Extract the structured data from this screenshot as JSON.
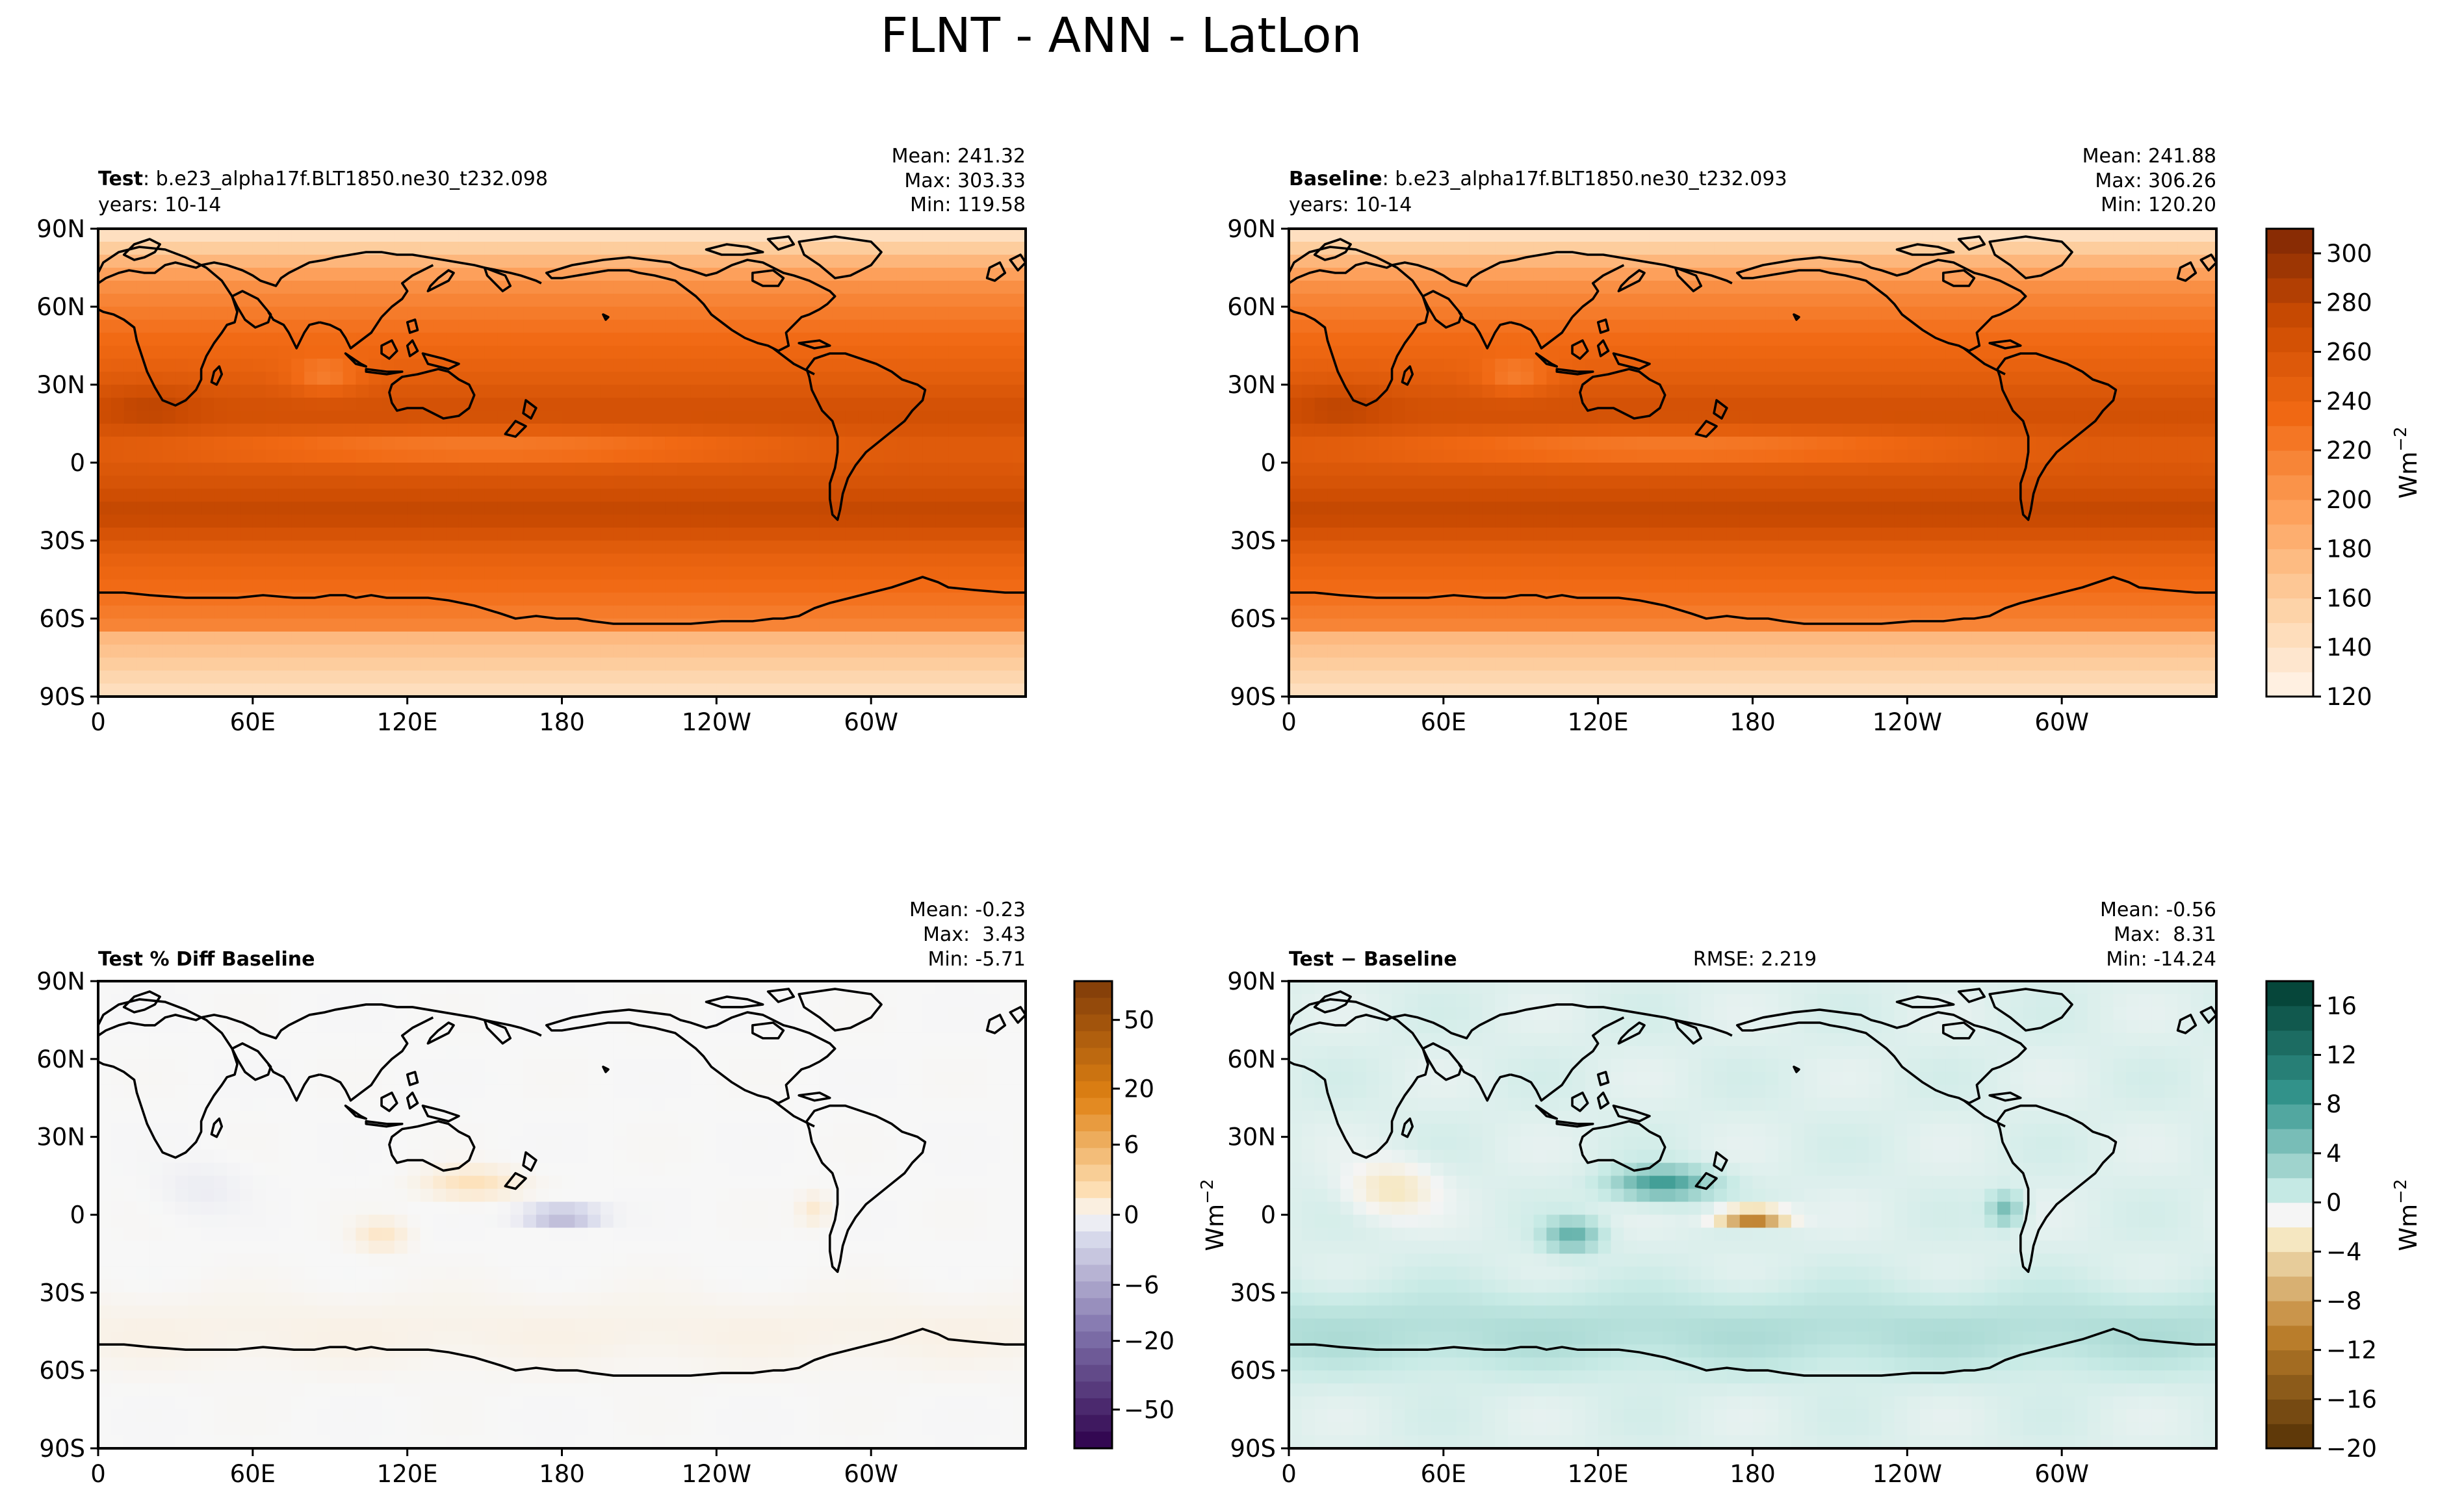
{
  "figure": {
    "title": "FLNT - ANN - LatLon"
  },
  "chart_data": [
    {
      "type": "heatmap",
      "id": "test",
      "label_bold": "Test",
      "label_rest": ": b.e23_alpha17f.BLT1850.ne30_t232.098",
      "years": "years: 10-14",
      "stats": [
        "Mean: 241.32",
        "Max: 303.33",
        "Min: 119.58"
      ],
      "field": "flnt",
      "palette": "oranges",
      "xticks": [
        "0",
        "60E",
        "120E",
        "180",
        "120W",
        "60W"
      ],
      "yticks": [
        "90N",
        "60N",
        "30N",
        "0",
        "30S",
        "60S",
        "90S"
      ],
      "xlim": [
        0,
        360
      ],
      "ylim": [
        -90,
        90
      ]
    },
    {
      "type": "heatmap",
      "id": "baseline",
      "label_bold": "Baseline",
      "label_rest": ": b.e23_alpha17f.BLT1850.ne30_t232.093",
      "years": "years: 10-14",
      "stats": [
        "Mean: 241.88",
        "Max: 306.26",
        "Min: 120.20"
      ],
      "field": "flnt",
      "palette": "oranges",
      "xticks": [
        "0",
        "60E",
        "120E",
        "180",
        "120W",
        "60W"
      ],
      "yticks": [
        "90N",
        "60N",
        "30N",
        "0",
        "30S",
        "60S",
        "90S"
      ],
      "xlim": [
        0,
        360
      ],
      "ylim": [
        -90,
        90
      ],
      "colorbar": {
        "range": [
          120,
          310
        ],
        "ticks": [
          "120",
          "140",
          "160",
          "180",
          "200",
          "220",
          "240",
          "260",
          "280",
          "300"
        ],
        "unit": "Wm",
        "unit_exp": "−2"
      }
    },
    {
      "type": "heatmap",
      "id": "pctdiff",
      "label_bold": "Test % Diff Baseline",
      "stats": [
        "Mean: -0.23",
        "Max:  3.43",
        "Min: -5.71"
      ],
      "field": "pct",
      "palette": "purple-orange",
      "xticks": [
        "0",
        "60E",
        "120E",
        "180",
        "120W",
        "60W"
      ],
      "yticks": [
        "90N",
        "60N",
        "30N",
        "0",
        "30S",
        "60S",
        "90S"
      ],
      "xlim": [
        0,
        360
      ],
      "ylim": [
        -90,
        90
      ],
      "colorbar": {
        "ticks": [
          "50",
          "20",
          "6",
          "0",
          "−6",
          "−20",
          "−50"
        ],
        "unit": "Wm",
        "unit_exp": "−2"
      }
    },
    {
      "type": "heatmap",
      "id": "diff",
      "label_bold": "Test",
      "label_rest": " − Baseline",
      "rmse": "RMSE: 2.219",
      "stats": [
        "Mean: -0.56",
        "Max:  8.31",
        "Min: -14.24"
      ],
      "field": "diff",
      "palette": "brown-teal",
      "xticks": [
        "0",
        "60E",
        "120E",
        "180",
        "120W",
        "60W"
      ],
      "yticks": [
        "90N",
        "60N",
        "30N",
        "0",
        "30S",
        "60S",
        "90S"
      ],
      "xlim": [
        0,
        360
      ],
      "ylim": [
        -90,
        90
      ],
      "colorbar": {
        "range": [
          -20,
          18
        ],
        "ticks": [
          "16",
          "12",
          "8",
          "4",
          "0",
          "−4",
          "−8",
          "−12",
          "−16",
          "−20"
        ],
        "unit": "Wm",
        "unit_exp": "−2"
      }
    }
  ]
}
